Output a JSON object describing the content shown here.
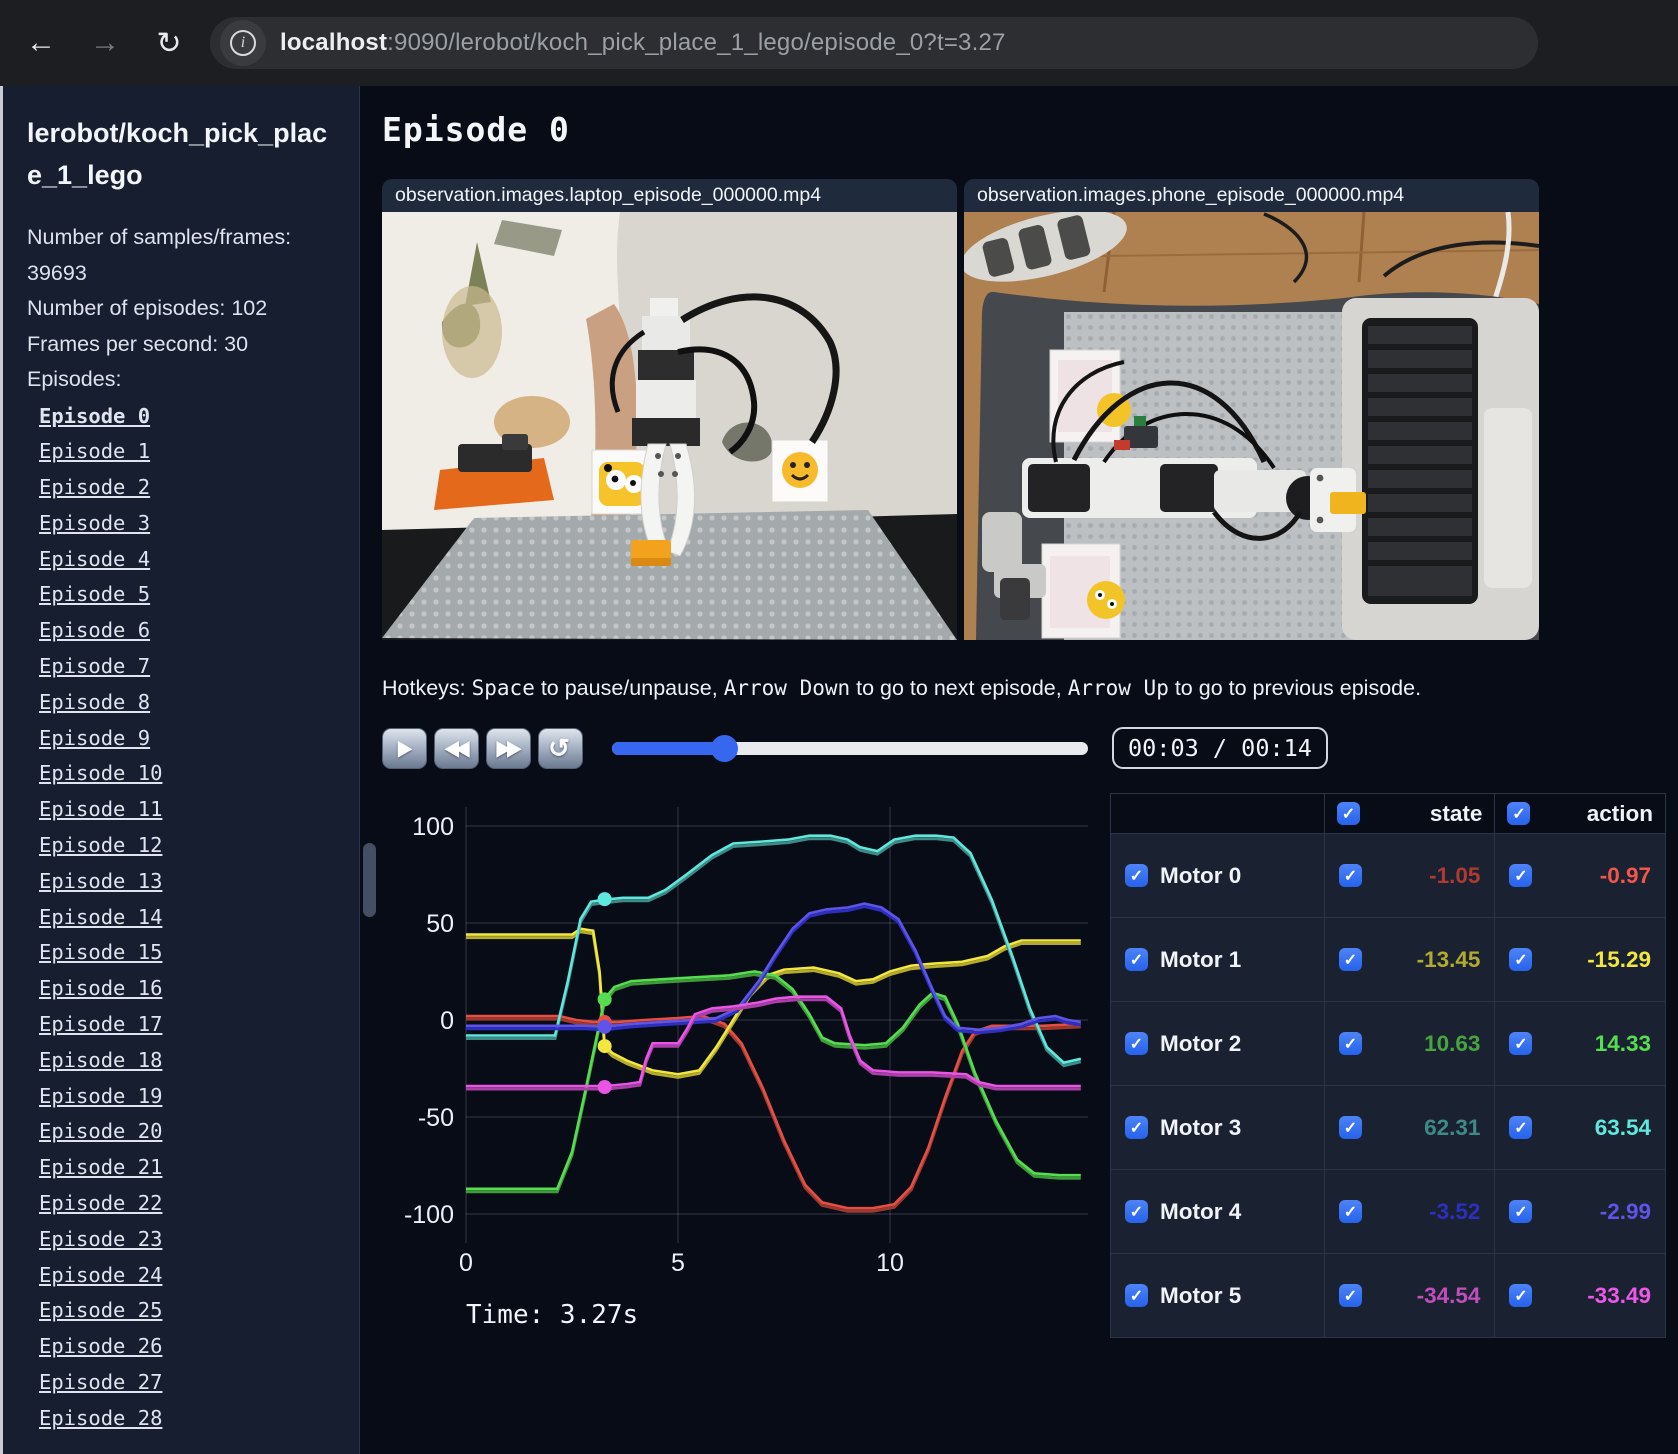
{
  "browser": {
    "back_icon": "back-arrow",
    "forward_icon": "forward-arrow",
    "reload_icon": "reload",
    "info_icon": "i",
    "url_host": "localhost",
    "url_rest": ":9090/lerobot/koch_pick_place_1_lego/episode_0?t=3.27"
  },
  "sidebar": {
    "dataset_title": "lerobot/koch_pick_place_1_lego",
    "info_lines": {
      "samples": "Number of samples/frames: 39693",
      "episodes_count": "Number of episodes: 102",
      "fps": "Frames per second: 30",
      "episodes_label": "Episodes:"
    },
    "episodes": [
      {
        "label": "Episode 0",
        "current": true
      },
      {
        "label": "Episode 1"
      },
      {
        "label": "Episode 2"
      },
      {
        "label": "Episode 3"
      },
      {
        "label": "Episode 4"
      },
      {
        "label": "Episode 5"
      },
      {
        "label": "Episode 6"
      },
      {
        "label": "Episode 7"
      },
      {
        "label": "Episode 8"
      },
      {
        "label": "Episode 9"
      },
      {
        "label": "Episode 10"
      },
      {
        "label": "Episode 11"
      },
      {
        "label": "Episode 12"
      },
      {
        "label": "Episode 13"
      },
      {
        "label": "Episode 14"
      },
      {
        "label": "Episode 15"
      },
      {
        "label": "Episode 16"
      },
      {
        "label": "Episode 17"
      },
      {
        "label": "Episode 18"
      },
      {
        "label": "Episode 19"
      },
      {
        "label": "Episode 20"
      },
      {
        "label": "Episode 21"
      },
      {
        "label": "Episode 22"
      },
      {
        "label": "Episode 23"
      },
      {
        "label": "Episode 24"
      },
      {
        "label": "Episode 25"
      },
      {
        "label": "Episode 26"
      },
      {
        "label": "Episode 27"
      },
      {
        "label": "Episode 28"
      }
    ]
  },
  "main": {
    "page_title": "Episode 0",
    "videos": [
      {
        "label": "observation.images.laptop_episode_000000.mp4"
      },
      {
        "label": "observation.images.phone_episode_000000.mp4"
      }
    ],
    "hotkeys": {
      "prefix": "Hotkeys: ",
      "key_space": "Space",
      "seg1": " to pause/unpause, ",
      "key_down": "Arrow Down",
      "seg2": " to go to next episode, ",
      "key_up": "Arrow Up",
      "seg3": " to go to previous episode."
    },
    "controls": {
      "play_icon": "▶",
      "rewind_icon": "◀◀",
      "forward_icon": "▶▶",
      "loop_icon": "↺",
      "progress_pct": 23.5,
      "time_display": "00:03 / 00:14"
    }
  },
  "chart_data": {
    "type": "line",
    "xlabel": "",
    "ylabel": "",
    "xlim": [
      0,
      14.5
    ],
    "ylim": [
      -105,
      105
    ],
    "xticks": [
      0,
      5,
      10
    ],
    "yticks": [
      -100,
      -50,
      0,
      50,
      100
    ],
    "grid": true,
    "cursor_t": 3.27,
    "time_label": "Time: 3.27s",
    "series": [
      {
        "name": "Motor 0",
        "state_color": "#9d382f",
        "action_color": "#e64f43",
        "cursor_value": -1.05,
        "points": [
          [
            0,
            2
          ],
          [
            2.2,
            2
          ],
          [
            2.6,
            0
          ],
          [
            3,
            -1
          ],
          [
            3.6,
            -1
          ],
          [
            4.2,
            0
          ],
          [
            5,
            1
          ],
          [
            5.6,
            2
          ],
          [
            6.1,
            -2
          ],
          [
            6.5,
            -12
          ],
          [
            7,
            -35
          ],
          [
            7.5,
            -62
          ],
          [
            8,
            -85
          ],
          [
            8.4,
            -94
          ],
          [
            9,
            -97
          ],
          [
            9.6,
            -97
          ],
          [
            10.1,
            -95
          ],
          [
            10.5,
            -86
          ],
          [
            10.9,
            -66
          ],
          [
            11.3,
            -40
          ],
          [
            11.7,
            -16
          ],
          [
            12,
            -6
          ],
          [
            12.4,
            -3
          ],
          [
            13,
            -3
          ],
          [
            13.6,
            -3
          ],
          [
            14.5,
            -2
          ]
        ]
      },
      {
        "name": "Motor 1",
        "state_color": "#b3aa2e",
        "action_color": "#f2e73e",
        "cursor_value": -13.45,
        "points": [
          [
            0,
            44
          ],
          [
            2.5,
            44
          ],
          [
            2.7,
            47
          ],
          [
            3,
            46
          ],
          [
            3.15,
            25
          ],
          [
            3.27,
            -13
          ],
          [
            3.45,
            -17
          ],
          [
            3.8,
            -21
          ],
          [
            4.4,
            -26
          ],
          [
            5,
            -28
          ],
          [
            5.5,
            -26
          ],
          [
            5.9,
            -14
          ],
          [
            6.3,
            0
          ],
          [
            6.7,
            14
          ],
          [
            7.1,
            23
          ],
          [
            7.5,
            26
          ],
          [
            8.2,
            27
          ],
          [
            8.8,
            24
          ],
          [
            9.2,
            20
          ],
          [
            9.6,
            21
          ],
          [
            10,
            25
          ],
          [
            10.5,
            28
          ],
          [
            11,
            29
          ],
          [
            11.7,
            30
          ],
          [
            12.3,
            33
          ],
          [
            12.7,
            38
          ],
          [
            13.1,
            41
          ],
          [
            13.8,
            41
          ],
          [
            14.5,
            41
          ]
        ]
      },
      {
        "name": "Motor 2",
        "state_color": "#3f9a3a",
        "action_color": "#55de50",
        "cursor_value": 10.63,
        "points": [
          [
            0,
            -87
          ],
          [
            2.15,
            -87
          ],
          [
            2.5,
            -68
          ],
          [
            2.8,
            -38
          ],
          [
            3.05,
            -12
          ],
          [
            3.27,
            11
          ],
          [
            3.5,
            17
          ],
          [
            3.9,
            20
          ],
          [
            4.6,
            21
          ],
          [
            5.4,
            22
          ],
          [
            6.2,
            23
          ],
          [
            6.8,
            25
          ],
          [
            7.3,
            23
          ],
          [
            7.7,
            16
          ],
          [
            8.1,
            3
          ],
          [
            8.4,
            -9
          ],
          [
            8.7,
            -12
          ],
          [
            9.4,
            -13
          ],
          [
            9.9,
            -12
          ],
          [
            10.3,
            -4
          ],
          [
            10.7,
            8
          ],
          [
            11,
            14
          ],
          [
            11.3,
            12
          ],
          [
            11.6,
            -2
          ],
          [
            12,
            -27
          ],
          [
            12.5,
            -52
          ],
          [
            13,
            -72
          ],
          [
            13.4,
            -79
          ],
          [
            14,
            -80
          ],
          [
            14.5,
            -80
          ]
        ]
      },
      {
        "name": "Motor 3",
        "state_color": "#3e8a86",
        "action_color": "#5ee8de",
        "cursor_value": 62.31,
        "points": [
          [
            0,
            -8
          ],
          [
            2.1,
            -8
          ],
          [
            2.4,
            20
          ],
          [
            2.7,
            52
          ],
          [
            2.95,
            61
          ],
          [
            3.27,
            62
          ],
          [
            3.7,
            63
          ],
          [
            4.3,
            63
          ],
          [
            4.7,
            67
          ],
          [
            5.2,
            75
          ],
          [
            5.8,
            85
          ],
          [
            6.3,
            91
          ],
          [
            7,
            92
          ],
          [
            7.6,
            93
          ],
          [
            8.1,
            95
          ],
          [
            8.6,
            95
          ],
          [
            9,
            93
          ],
          [
            9.3,
            89
          ],
          [
            9.7,
            87
          ],
          [
            10.1,
            93
          ],
          [
            10.6,
            95
          ],
          [
            11.1,
            95
          ],
          [
            11.5,
            94
          ],
          [
            11.9,
            86
          ],
          [
            12.4,
            62
          ],
          [
            12.9,
            32
          ],
          [
            13.3,
            6
          ],
          [
            13.7,
            -14
          ],
          [
            14.1,
            -22
          ],
          [
            14.5,
            -20
          ]
        ]
      },
      {
        "name": "Motor 4",
        "state_color": "#2c2fc0",
        "action_color": "#5e55e8",
        "cursor_value": -3.52,
        "points": [
          [
            0,
            -3
          ],
          [
            2.8,
            -3
          ],
          [
            3.27,
            -3.5
          ],
          [
            3.9,
            -2
          ],
          [
            4.6,
            -1
          ],
          [
            5.3,
            0
          ],
          [
            5.9,
            1
          ],
          [
            6.4,
            6
          ],
          [
            6.9,
            20
          ],
          [
            7.3,
            34
          ],
          [
            7.7,
            47
          ],
          [
            8.1,
            55
          ],
          [
            8.5,
            57
          ],
          [
            9,
            58
          ],
          [
            9.4,
            60
          ],
          [
            9.8,
            58
          ],
          [
            10.2,
            52
          ],
          [
            10.6,
            36
          ],
          [
            11,
            16
          ],
          [
            11.3,
            2
          ],
          [
            11.6,
            -4
          ],
          [
            12.1,
            -5
          ],
          [
            12.6,
            -4
          ],
          [
            13.1,
            -2
          ],
          [
            13.5,
            1
          ],
          [
            13.9,
            2
          ],
          [
            14.2,
            0
          ],
          [
            14.5,
            -1
          ]
        ]
      },
      {
        "name": "Motor 5",
        "state_color": "#aa3fa8",
        "action_color": "#ea55e5",
        "cursor_value": -34.54,
        "points": [
          [
            0,
            -34
          ],
          [
            3.3,
            -34
          ],
          [
            3.8,
            -33
          ],
          [
            4.1,
            -32
          ],
          [
            4.25,
            -20
          ],
          [
            4.4,
            -12
          ],
          [
            5,
            -12
          ],
          [
            5.2,
            -5
          ],
          [
            5.4,
            3
          ],
          [
            5.8,
            6
          ],
          [
            6.3,
            7
          ],
          [
            6.9,
            9
          ],
          [
            7.3,
            11
          ],
          [
            7.8,
            12
          ],
          [
            8.5,
            12
          ],
          [
            8.85,
            6
          ],
          [
            9.05,
            -8
          ],
          [
            9.3,
            -21
          ],
          [
            9.6,
            -26
          ],
          [
            10.2,
            -27
          ],
          [
            11,
            -27
          ],
          [
            11.8,
            -28
          ],
          [
            12.1,
            -32
          ],
          [
            12.5,
            -34
          ],
          [
            13.2,
            -34
          ],
          [
            14.5,
            -34
          ]
        ]
      }
    ]
  },
  "table": {
    "state_header": "state",
    "action_header": "action",
    "rows": [
      {
        "name": "Motor 0",
        "state": "-1.05",
        "action": "-0.97",
        "state_color": "#b03a31",
        "action_color": "#f4564b"
      },
      {
        "name": "Motor 1",
        "state": "-13.45",
        "action": "-15.29",
        "state_color": "#b3aa2e",
        "action_color": "#f2e73e"
      },
      {
        "name": "Motor 2",
        "state": "10.63",
        "action": "14.33",
        "state_color": "#47a53f",
        "action_color": "#55de50"
      },
      {
        "name": "Motor 3",
        "state": "62.31",
        "action": "63.54",
        "state_color": "#3e8a86",
        "action_color": "#5ee8de"
      },
      {
        "name": "Motor 4",
        "state": "-3.52",
        "action": "-2.99",
        "state_color": "#2c2fc0",
        "action_color": "#5e55e8"
      },
      {
        "name": "Motor 5",
        "state": "-34.54",
        "action": "-33.49",
        "state_color": "#c14ebd",
        "action_color": "#ee58e8"
      }
    ]
  }
}
